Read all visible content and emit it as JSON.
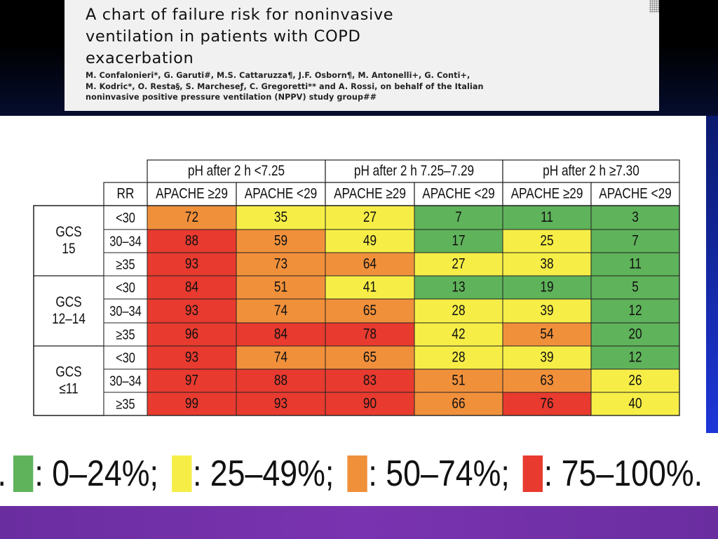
{
  "header": {
    "title": "A chart of failure risk for noninvasive\nventilation in patients with COPD\nexacerbation",
    "authors": "M. Confalonieri*, G. Garuti#, M.S. Cattaruzza¶, J.F. Osborn¶, M. Antonelli+, G. Conti+,\nM. Kodric*, O. Resta§, S. Marcheseƒ, C. Gregoretti** and A. Rossi, on behalf of the Italian\nnoninvasive positive pressure ventilation (NPPV) study group##"
  },
  "colors": {
    "green": "#5fb35a",
    "yellow": "#f6ee47",
    "orange": "#f1903b",
    "red": "#e83a2f"
  },
  "chart_data": {
    "type": "table",
    "title": "",
    "row_header": "RR",
    "column_groups": [
      {
        "label": "pH after 2 h <7.25",
        "columns": [
          "APACHE ≥29",
          "APACHE <29"
        ]
      },
      {
        "label": "pH after 2 h 7.25–7.29",
        "columns": [
          "APACHE ≥29",
          "APACHE <29"
        ]
      },
      {
        "label": "pH after 2 h ≥7.30",
        "columns": [
          "APACHE ≥29",
          "APACHE <29"
        ]
      }
    ],
    "row_groups": [
      {
        "label": "GCS\n15",
        "rows": [
          "<30",
          "30–34",
          "≥35"
        ]
      },
      {
        "label": "GCS\n12–14",
        "rows": [
          "<30",
          "30–34",
          "≥35"
        ]
      },
      {
        "label": "GCS\n≤11",
        "rows": [
          "<30",
          "30–34",
          "≥35"
        ]
      }
    ],
    "values": [
      [
        72,
        35,
        27,
        7,
        11,
        3
      ],
      [
        88,
        59,
        49,
        17,
        25,
        7
      ],
      [
        93,
        73,
        64,
        27,
        38,
        11
      ],
      [
        84,
        51,
        41,
        13,
        19,
        5
      ],
      [
        93,
        74,
        65,
        28,
        39,
        12
      ],
      [
        96,
        84,
        78,
        42,
        54,
        20
      ],
      [
        93,
        74,
        65,
        28,
        39,
        12
      ],
      [
        97,
        88,
        83,
        51,
        63,
        26
      ],
      [
        99,
        93,
        90,
        66,
        76,
        40
      ]
    ],
    "legend": [
      {
        "color": "green",
        "label": ": 0–24%;"
      },
      {
        "color": "yellow",
        "label": ": 25–49%;"
      },
      {
        "color": "orange",
        "label": ": 50–74%;"
      },
      {
        "color": "red",
        "label": ": 75–100%."
      }
    ],
    "legend_lead": "."
  }
}
